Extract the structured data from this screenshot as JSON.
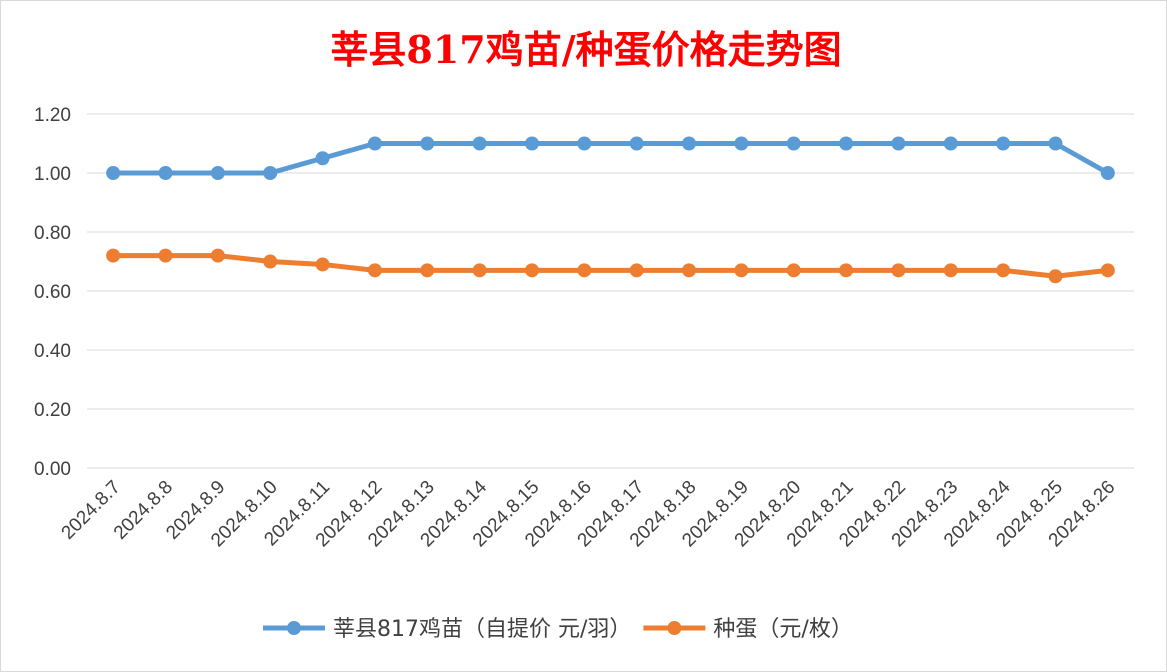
{
  "chart_data": {
    "type": "line",
    "title": "莘县817鸡苗/种蛋价格走势图",
    "title_color": "#ff0000",
    "categories": [
      "2024.8.7",
      "2024.8.8",
      "2024.8.9",
      "2024.8.10",
      "2024.8.11",
      "2024.8.12",
      "2024.8.13",
      "2024.8.14",
      "2024.8.15",
      "2024.8.16",
      "2024.8.17",
      "2024.8.18",
      "2024.8.19",
      "2024.8.20",
      "2024.8.21",
      "2024.8.22",
      "2024.8.23",
      "2024.8.24",
      "2024.8.25",
      "2024.8.26"
    ],
    "series": [
      {
        "name": "莘县817鸡苗（自提价 元/羽）",
        "color": "#5b9bd5",
        "values": [
          1.0,
          1.0,
          1.0,
          1.0,
          1.05,
          1.1,
          1.1,
          1.1,
          1.1,
          1.1,
          1.1,
          1.1,
          1.1,
          1.1,
          1.1,
          1.1,
          1.1,
          1.1,
          1.1,
          1.0
        ]
      },
      {
        "name": "种蛋（元/枚）",
        "color": "#ed7d31",
        "values": [
          0.72,
          0.72,
          0.72,
          0.7,
          0.69,
          0.67,
          0.67,
          0.67,
          0.67,
          0.67,
          0.67,
          0.67,
          0.67,
          0.67,
          0.67,
          0.67,
          0.67,
          0.67,
          0.65,
          0.67
        ]
      }
    ],
    "yticks": [
      "0.00",
      "0.20",
      "0.40",
      "0.60",
      "0.80",
      "1.00",
      "1.20"
    ],
    "ylim": [
      0,
      1.2
    ],
    "grid": true,
    "legend_position": "bottom"
  }
}
